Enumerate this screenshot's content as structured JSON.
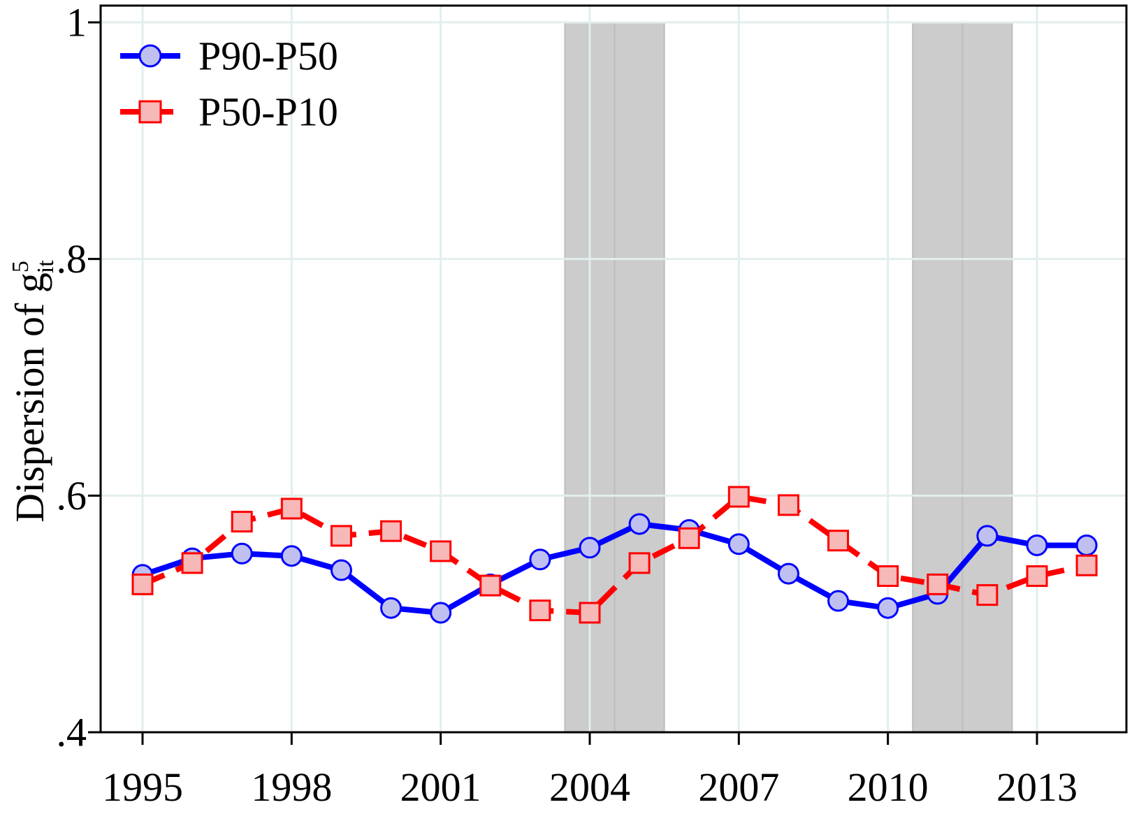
{
  "chart_data": {
    "type": "line",
    "title": "",
    "xlabel": "",
    "ylabel": {
      "base": "Dispersion of g",
      "sup": "5",
      "sub": "it"
    },
    "xlim": [
      1994.5,
      2015.0
    ],
    "ylim": [
      0.4,
      1.0
    ],
    "xticks": [
      {
        "value": 1995,
        "label": "1995"
      },
      {
        "value": 1998,
        "label": "1998"
      },
      {
        "value": 2001,
        "label": "2001"
      },
      {
        "value": 2004,
        "label": "2004"
      },
      {
        "value": 2007,
        "label": "2007"
      },
      {
        "value": 2010,
        "label": "2010"
      },
      {
        "value": 2013,
        "label": "2013"
      }
    ],
    "yticks": [
      {
        "value": 0.4,
        "label": ".4"
      },
      {
        "value": 0.6,
        "label": ".6"
      },
      {
        "value": 0.8,
        "label": ".8"
      },
      {
        "value": 1.0,
        "label": "1"
      }
    ],
    "grid": true,
    "legend_position": "top-left",
    "shaded_periods": [
      {
        "start": 2003.5,
        "end": 2004.5
      },
      {
        "start": 2004.5,
        "end": 2005.5
      },
      {
        "start": 2010.5,
        "end": 2011.5
      },
      {
        "start": 2011.5,
        "end": 2012.5
      }
    ],
    "x": [
      1995,
      1996,
      1997,
      1998,
      1999,
      2000,
      2001,
      2002,
      2003,
      2004,
      2005,
      2006,
      2007,
      2008,
      2009,
      2010,
      2011,
      2012,
      2013,
      2014
    ],
    "series": [
      {
        "name": "P90-P50",
        "color": "#0000ff",
        "marker": "circle",
        "marker_fill": "#c0c0f0",
        "line_style": "solid",
        "values": [
          0.533,
          0.547,
          0.551,
          0.549,
          0.537,
          0.505,
          0.501,
          0.525,
          0.546,
          0.556,
          0.576,
          0.571,
          0.559,
          0.534,
          0.511,
          0.505,
          0.517,
          0.566,
          0.558,
          0.558
        ]
      },
      {
        "name": "P50-P10",
        "color": "#ff0000",
        "marker": "square",
        "marker_fill": "#f7b8b8",
        "line_style": "dashed",
        "values": [
          0.525,
          0.543,
          0.578,
          0.589,
          0.566,
          0.57,
          0.553,
          0.524,
          0.503,
          0.501,
          0.543,
          0.564,
          0.599,
          0.592,
          0.562,
          0.532,
          0.525,
          0.516,
          0.532,
          0.541
        ]
      }
    ]
  }
}
